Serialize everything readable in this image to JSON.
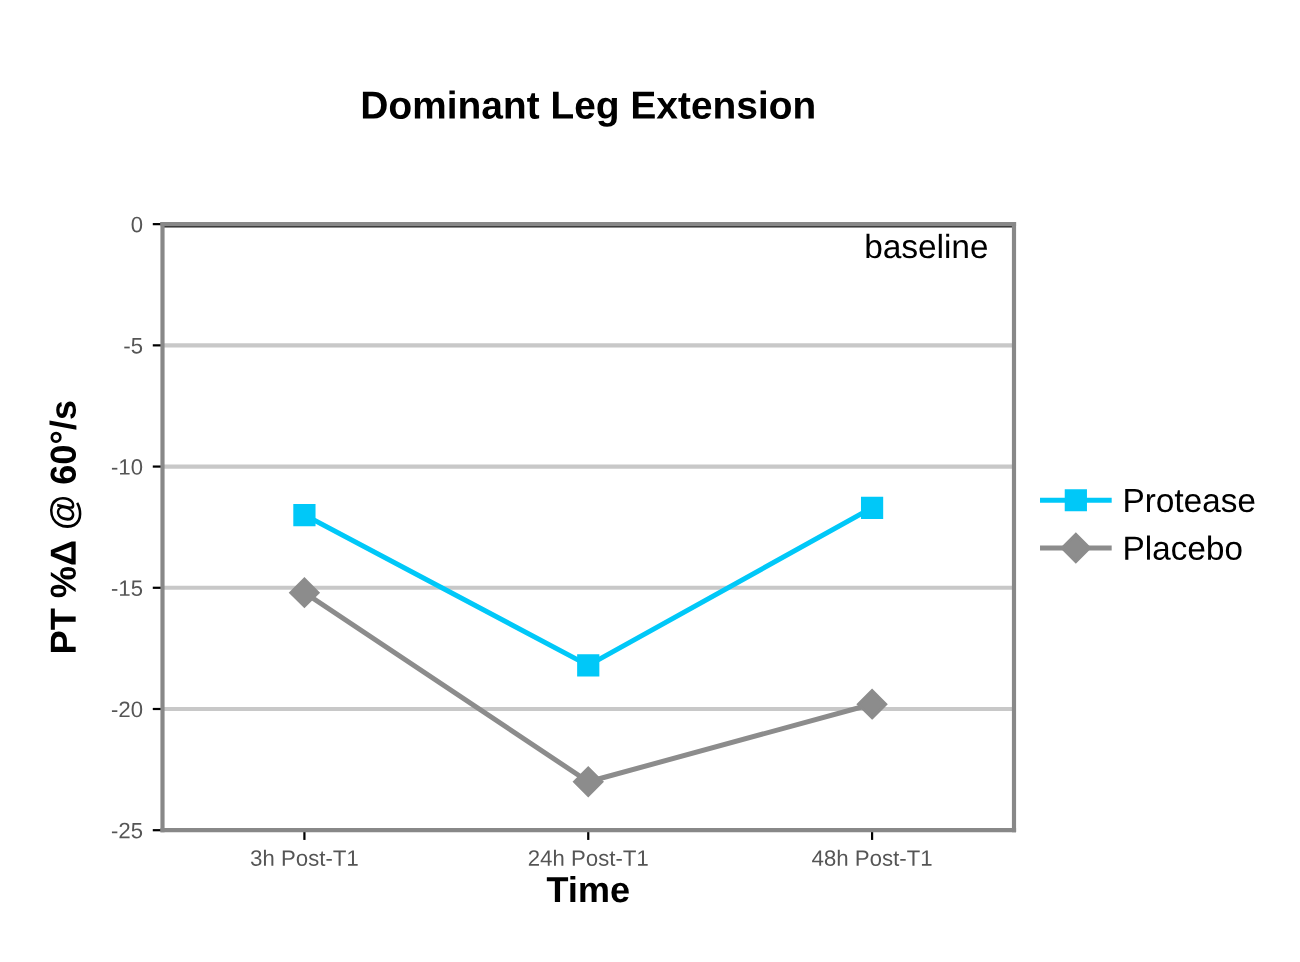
{
  "chart_data": {
    "type": "line",
    "title": "Dominant Leg Extension",
    "xlabel": "Time",
    "ylabel": "PT %Δ @ 60°/s",
    "categories": [
      "3h Post-T1",
      "24h Post-T1",
      "48h Post-T1"
    ],
    "series": [
      {
        "name": "Protease",
        "color": "#00c8f8",
        "marker": "square",
        "values": [
          -12,
          -18.2,
          -11.7
        ]
      },
      {
        "name": "Placebo",
        "color": "#8c8c8c",
        "marker": "diamond",
        "values": [
          -15.2,
          -23,
          -19.8
        ]
      }
    ],
    "ylim": [
      -25,
      0
    ],
    "yticks": [
      -25,
      -20,
      -15,
      -10,
      -5,
      0
    ],
    "ref_lines": [
      {
        "axis": "y",
        "value": 0,
        "label": "baseline",
        "color": "#222222"
      }
    ],
    "grid": "y",
    "legend": "right"
  }
}
